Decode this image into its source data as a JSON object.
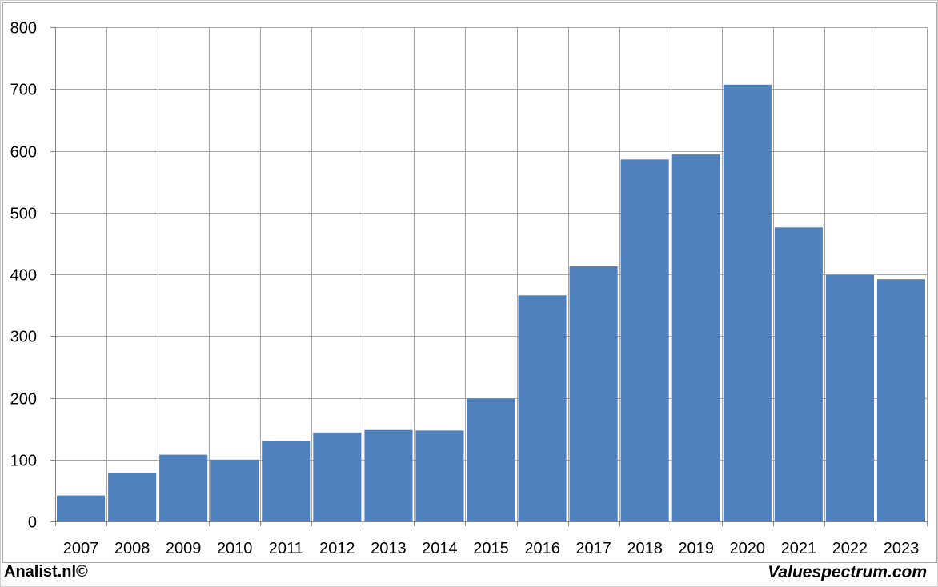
{
  "footer": {
    "left_text": "Analist.nl©",
    "right_text": "Valuespectrum.com"
  },
  "colors": {
    "bar": "#4f81bd",
    "grid": "#a6a6a6",
    "axis": "#868686",
    "background": "#ffffff"
  },
  "chart_data": {
    "type": "bar",
    "title": "",
    "xlabel": "",
    "ylabel": "",
    "categories": [
      "2007",
      "2008",
      "2009",
      "2010",
      "2011",
      "2012",
      "2013",
      "2014",
      "2015",
      "2016",
      "2017",
      "2018",
      "2019",
      "2020",
      "2021",
      "2022",
      "2023"
    ],
    "values": [
      42,
      78,
      108,
      100,
      130,
      144,
      148,
      147,
      199,
      366,
      413,
      586,
      594,
      707,
      476,
      399,
      392
    ],
    "ylim": [
      0,
      800
    ],
    "yticks": [
      0,
      100,
      200,
      300,
      400,
      500,
      600,
      700,
      800
    ],
    "grid": true,
    "legend": "none"
  }
}
